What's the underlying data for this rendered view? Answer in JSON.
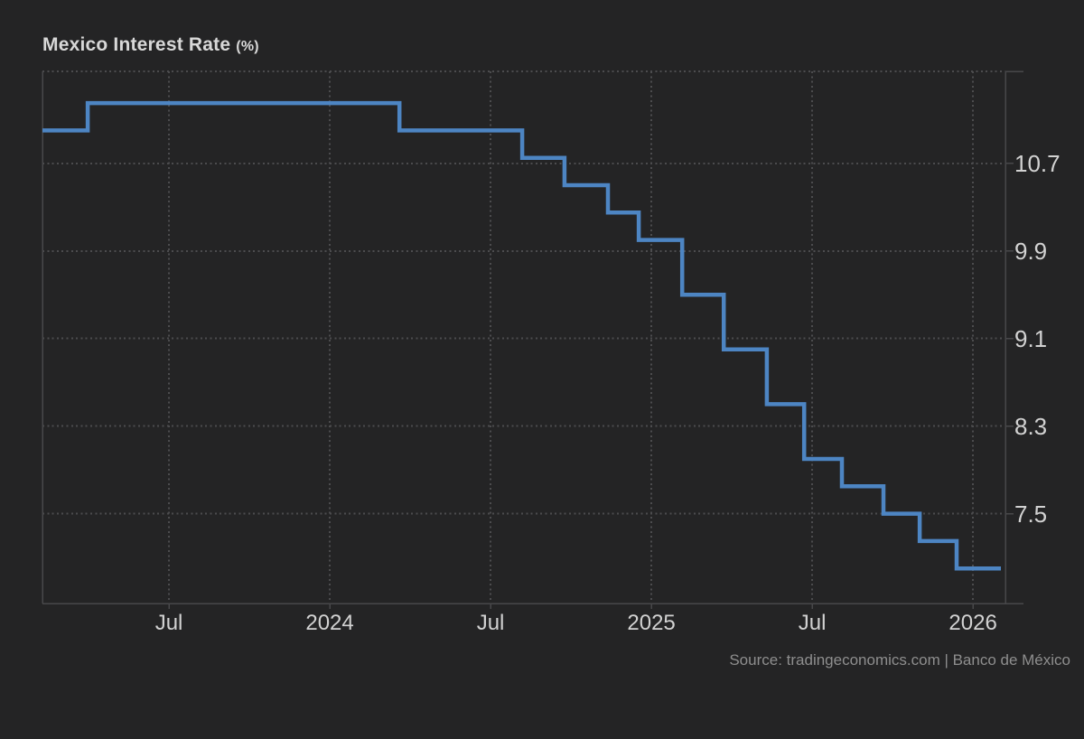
{
  "header": {
    "title": "Mexico Interest Rate",
    "unit": "(%)"
  },
  "footer": {
    "source": "Source: tradingeconomics.com | Banco de México"
  },
  "colors": {
    "background": "#242425",
    "line": "#4d85c3",
    "grid": "#4c4c4e",
    "axis": "#48484a",
    "tick": "#4c4c4e",
    "tick_text": "#d2d2d2",
    "title_text": "#d8d8d8",
    "source_text": "#8e8e8e"
  },
  "chart_data": {
    "type": "line",
    "step": "after",
    "title": "Mexico Interest Rate (%)",
    "xlabel": "",
    "ylabel": "",
    "legend": "none",
    "grid": "dotted",
    "x_unit": "months since 2023-01 (Jul 2023 = 6)",
    "xlim": [
      1.28,
      37.21
    ],
    "ylim": [
      6.68,
      11.54
    ],
    "y_ticks": [
      {
        "value": 10.7,
        "label": "10.7"
      },
      {
        "value": 9.9,
        "label": "9.9"
      },
      {
        "value": 9.1,
        "label": "9.1"
      },
      {
        "value": 8.3,
        "label": "8.3"
      },
      {
        "value": 7.5,
        "label": "7.5"
      }
    ],
    "x_ticks": [
      {
        "t": 6,
        "label": "Jul"
      },
      {
        "t": 12,
        "label": "2024"
      },
      {
        "t": 18,
        "label": "Jul"
      },
      {
        "t": 24,
        "label": "2025"
      },
      {
        "t": 30,
        "label": "Jul"
      },
      {
        "t": 36,
        "label": "2026"
      }
    ],
    "series": [
      {
        "name": "Mexico Interest Rate (%)",
        "line_end_t": 37.04,
        "points": [
          {
            "t": 1.28,
            "value": 11.0,
            "approx_date": "2023-02"
          },
          {
            "t": 2.97,
            "value": 11.25,
            "approx_date": "2023-03"
          },
          {
            "t": 14.6,
            "value": 11.0,
            "approx_date": "2024-03"
          },
          {
            "t": 19.18,
            "value": 10.75,
            "approx_date": "2024-08"
          },
          {
            "t": 20.76,
            "value": 10.5,
            "approx_date": "2024-09"
          },
          {
            "t": 22.38,
            "value": 10.25,
            "approx_date": "2024-11"
          },
          {
            "t": 23.53,
            "value": 10.0,
            "approx_date": "2024-12"
          },
          {
            "t": 25.15,
            "value": 9.5,
            "approx_date": "2025-02"
          },
          {
            "t": 26.7,
            "value": 9.0,
            "approx_date": "2025-03"
          },
          {
            "t": 28.31,
            "value": 8.5,
            "approx_date": "2025-05"
          },
          {
            "t": 29.7,
            "value": 8.0,
            "approx_date": "2025-06"
          },
          {
            "t": 31.11,
            "value": 7.75,
            "approx_date": "2025-08"
          },
          {
            "t": 32.66,
            "value": 7.5,
            "approx_date": "2025-09"
          },
          {
            "t": 34.01,
            "value": 7.25,
            "approx_date": "2025-11"
          },
          {
            "t": 35.39,
            "value": 7.0,
            "approx_date": "2025-12"
          }
        ]
      }
    ]
  }
}
